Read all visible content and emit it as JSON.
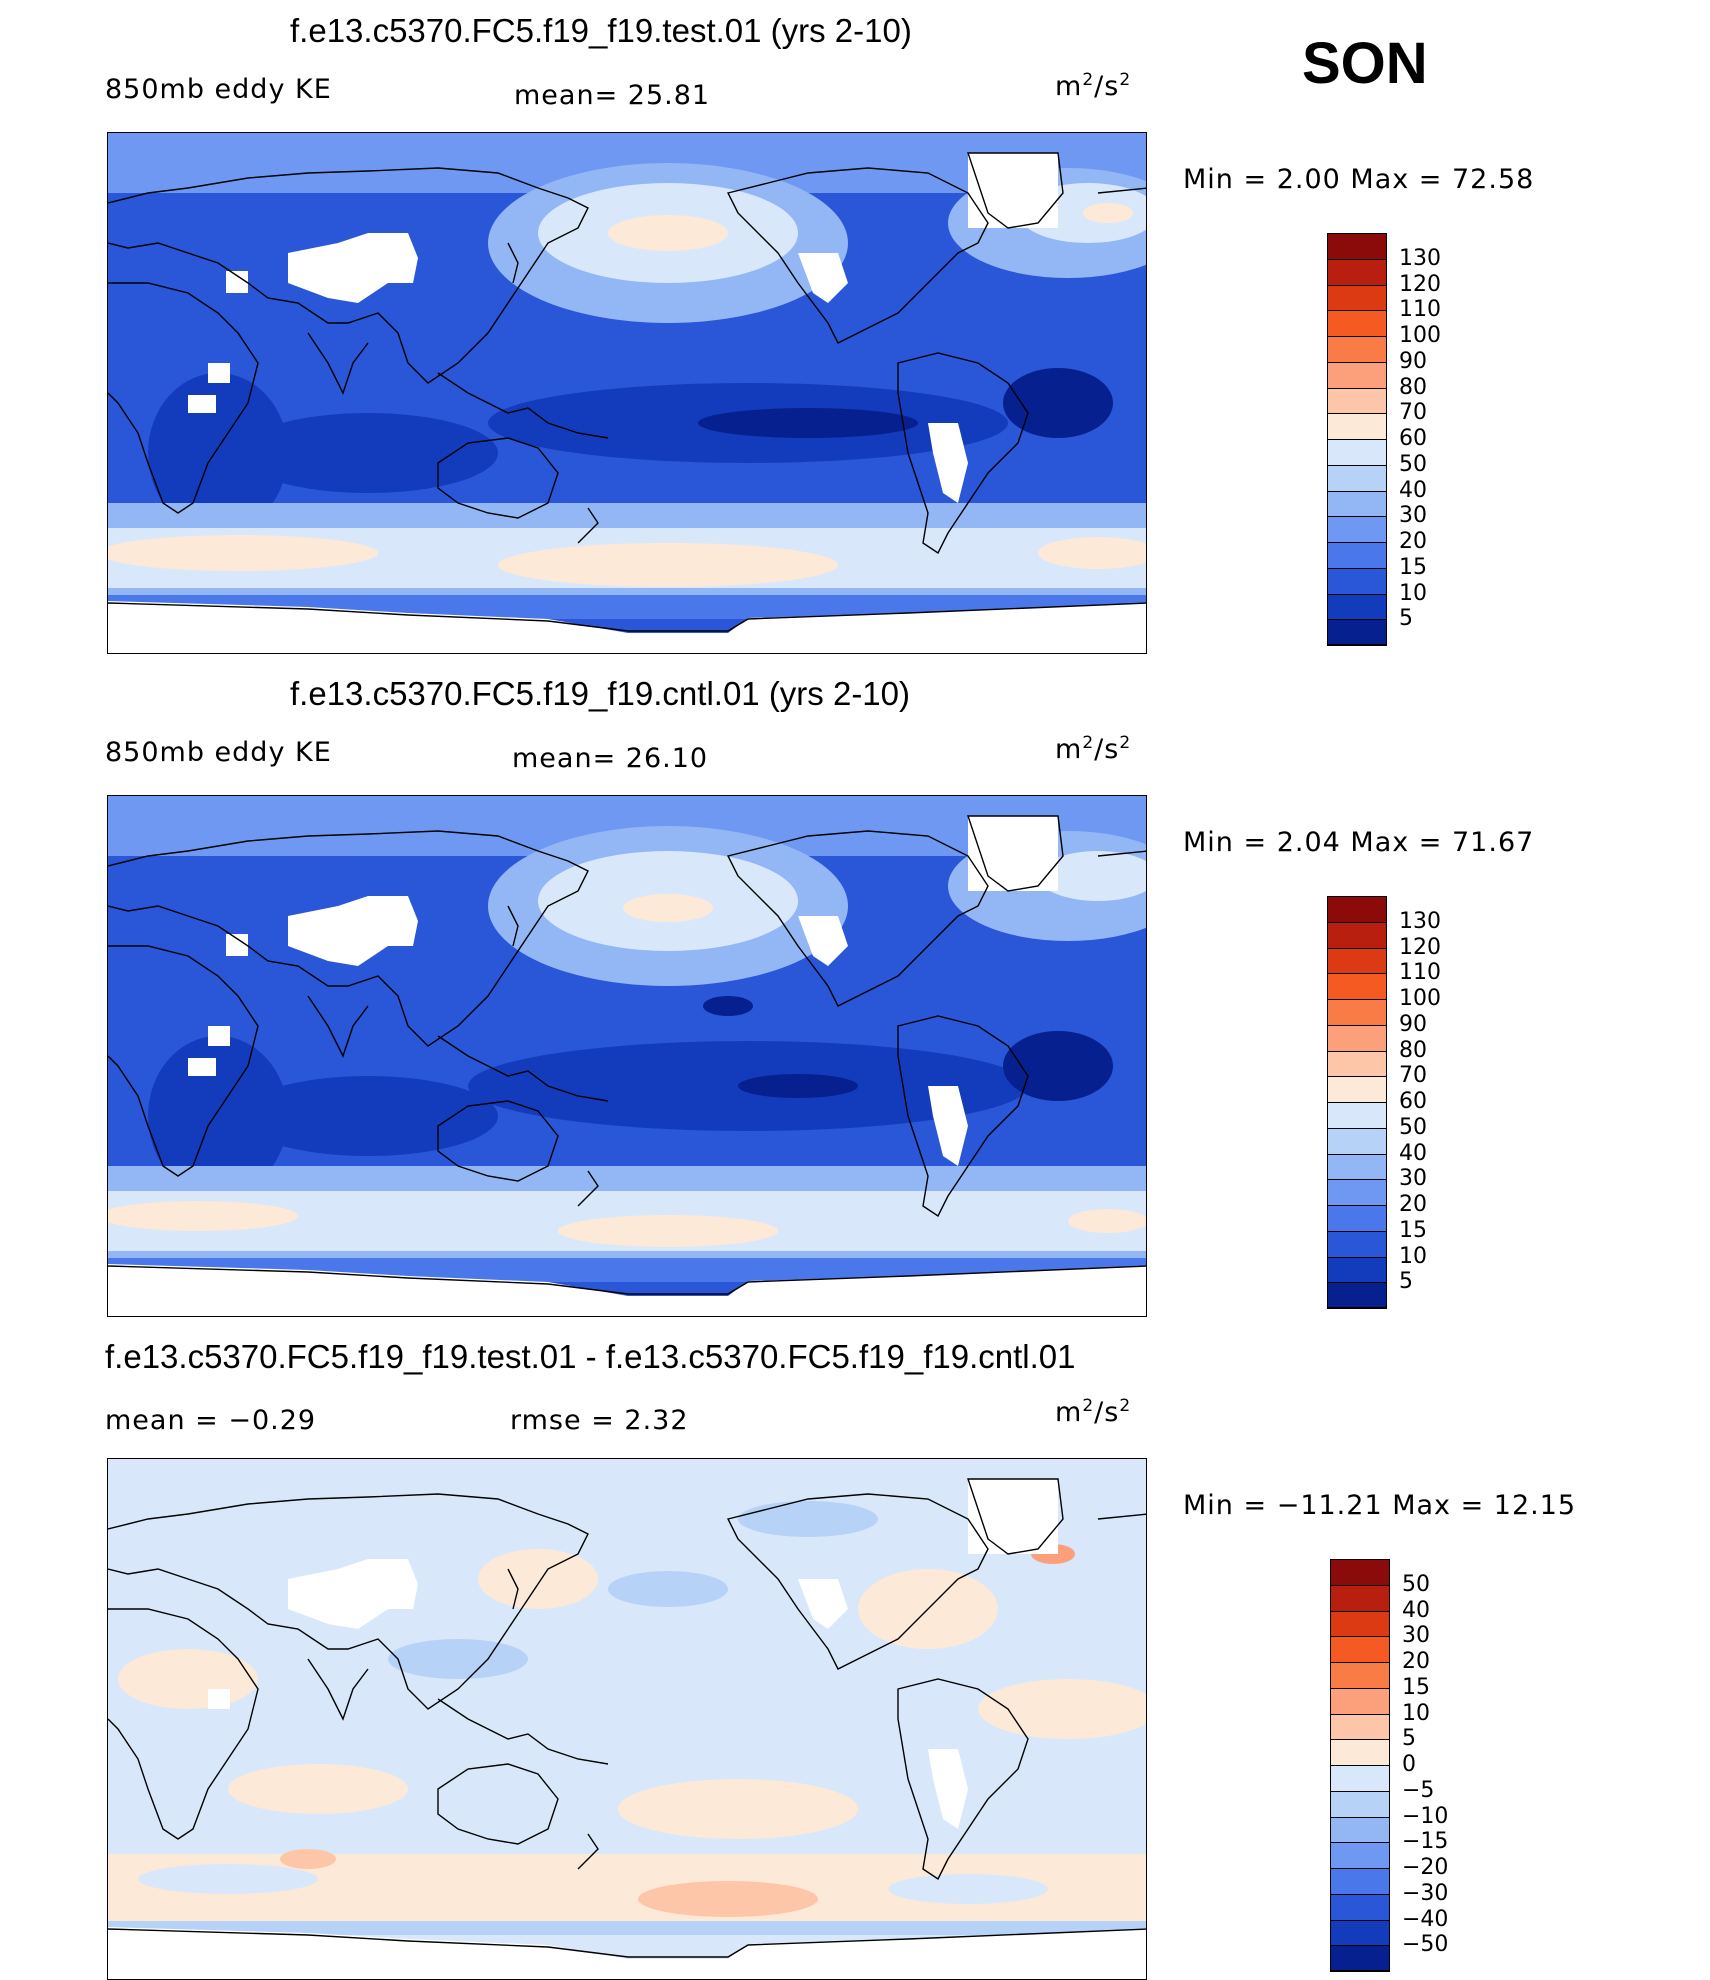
{
  "season": "SON",
  "panels": [
    {
      "id": "test",
      "title": "f.e13.c5370.FC5.f19_f19.test.01 (yrs 2-10)",
      "left_label": "850mb eddy KE",
      "mid_label": "mean=  25.81",
      "units_base": "m",
      "units_exp1": "2",
      "units_mid": "/s",
      "units_exp2": "2",
      "minmax": "Min =    2.00 Max =   72.58"
    },
    {
      "id": "cntl",
      "title": "f.e13.c5370.FC5.f19_f19.cntl.01 (yrs 2-10)",
      "left_label": "850mb eddy KE",
      "mid_label": "mean=  26.10",
      "units_base": "m",
      "units_exp1": "2",
      "units_mid": "/s",
      "units_exp2": "2",
      "minmax": "Min =    2.04 Max =   71.67"
    },
    {
      "id": "diff",
      "title": "f.e13.c5370.FC5.f19_f19.test.01 - f.e13.c5370.FC5.f19_f19.cntl.01",
      "left_label": "mean =   −0.29",
      "mid_label": "rmse =    2.32",
      "units_base": "m",
      "units_exp1": "2",
      "units_mid": "/s",
      "units_exp2": "2",
      "minmax": "Min = −11.21 Max =   12.15"
    }
  ],
  "colorbars": {
    "ke": {
      "labels": [
        "130",
        "120",
        "110",
        "100",
        "90",
        "80",
        "70",
        "60",
        "50",
        "40",
        "30",
        "20",
        "15",
        "10",
        "5"
      ],
      "colors": [
        "#8b0a0a",
        "#b81f0e",
        "#dc3a12",
        "#f45a22",
        "#f97c46",
        "#fba07b",
        "#fdc6a8",
        "#fde9d8",
        "#d8e8fa",
        "#b7d2f7",
        "#93b6f5",
        "#6e98f1",
        "#4a78eb",
        "#2a56d8",
        "#133cbd",
        "#06208f"
      ]
    },
    "diff": {
      "labels": [
        "50",
        "40",
        "30",
        "20",
        "15",
        "10",
        "5",
        "0",
        "−5",
        "−10",
        "−15",
        "−20",
        "−30",
        "−40",
        "−50"
      ],
      "colors": [
        "#8b0a0a",
        "#b81f0e",
        "#dc3a12",
        "#f45a22",
        "#f97c46",
        "#fba07b",
        "#fdc6a8",
        "#fde9d8",
        "#d8e8fa",
        "#b7d2f7",
        "#93b6f5",
        "#6e98f1",
        "#4a78eb",
        "#2a56d8",
        "#133cbd",
        "#06208f"
      ]
    }
  },
  "map_palette": {
    "ke_background": "#2a56d8",
    "ke_light": "#93b6f5",
    "ke_lighter": "#d8e8fa",
    "ke_peach": "#fde9d8",
    "ke_deep": "#133cbd",
    "ke_darkest": "#06208f",
    "missing": "#ffffff",
    "diff_background": "#d8e8fa",
    "diff_positive": "#fde9d8",
    "diff_negative": "#b7d2f7",
    "diff_strong_pos": "#fba07b",
    "coast": "#000000"
  }
}
